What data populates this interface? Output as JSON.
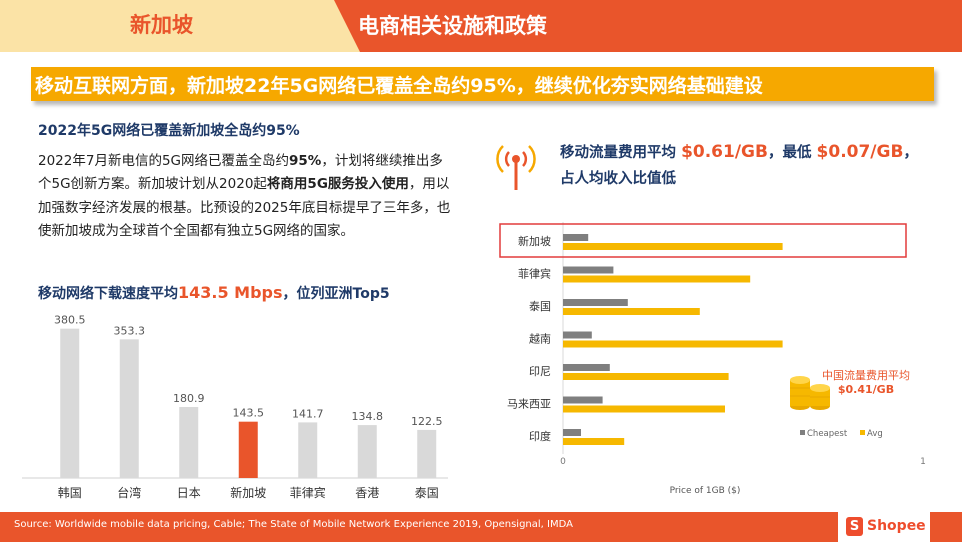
{
  "header": {
    "region_title": "新加坡",
    "section_title": "电商相关设施和政策",
    "left_bg": "#fbe3a6",
    "accent": "#e9552b"
  },
  "headline": {
    "text": "移动互联网方面，新加坡22年5G网络已覆盖全岛约95%，继续优化夯实网络基础建设",
    "bg": "#f6a800"
  },
  "left": {
    "subtitle": "2022年5G网络已覆盖新加坡全岛约95%",
    "body_1": "2022年7月新电信的5G网络已覆盖全岛约",
    "body_1_bold": "95%",
    "body_2": "，计划将继续推出多个5G创新方案。新加坡计划从2020起",
    "body_2_bold": "将商用5G服务投入使用",
    "body_3": "，用以加强数字经济发展的根基。比预设的2025年底目标提早了三年多，也使新加坡成为全球首个全国都有独立5G网络的国家。",
    "speed_prefix": "移动网络下载速度平均",
    "speed_value": "143.5 Mbps",
    "speed_suffix": "，位列亚洲Top5"
  },
  "right": {
    "heading_1": "移动流量费用平均 ",
    "avg_price": "$0.61/GB",
    "heading_2": "，最低 ",
    "min_price": "$0.07/GB",
    "heading_3": "，",
    "heading_4": "占人均收入比值低",
    "cn_note_1": "中国流量费用平均",
    "cn_note_2": "$0.41/GB"
  },
  "footer": {
    "source": "Source: Worldwide mobile data pricing, Cable; The State of Mobile Network Experience 2019, Opensignal, IMDA",
    "logo_text": "Shopee",
    "logo_glyph": "S"
  },
  "chart_data": [
    {
      "type": "bar",
      "categories": [
        "韩国",
        "台湾",
        "日本",
        "新加坡",
        "菲律宾",
        "香港",
        "泰国"
      ],
      "values": [
        380.5,
        353.3,
        180.9,
        143.5,
        141.7,
        134.8,
        122.5
      ],
      "value_labels": [
        "380.5",
        "353.3",
        "180.9",
        "143.5",
        "141.7",
        "134.8",
        "122.5"
      ],
      "highlight": "新加坡",
      "colors": {
        "bar": "#d9d9d9",
        "highlight": "#e9552b"
      },
      "ylim": [
        0,
        400
      ]
    },
    {
      "type": "bar",
      "orientation": "horizontal",
      "categories": [
        "新加坡",
        "菲律宾",
        "泰国",
        "越南",
        "印尼",
        "马来西亚",
        "印度"
      ],
      "series": [
        {
          "name": "Cheapest",
          "values": [
            0.07,
            0.14,
            0.18,
            0.08,
            0.13,
            0.11,
            0.05
          ],
          "color": "#7f7f7f"
        },
        {
          "name": "Avg",
          "values": [
            0.61,
            0.52,
            0.38,
            0.61,
            0.46,
            0.45,
            0.17
          ],
          "color": "#f6b800"
        }
      ],
      "highlight": "新加坡",
      "xlabel": "Price of 1GB ($)",
      "xlim": [
        0,
        1
      ],
      "x_ticks": [
        "0",
        "1"
      ],
      "legend_position": "bottom-right"
    }
  ]
}
